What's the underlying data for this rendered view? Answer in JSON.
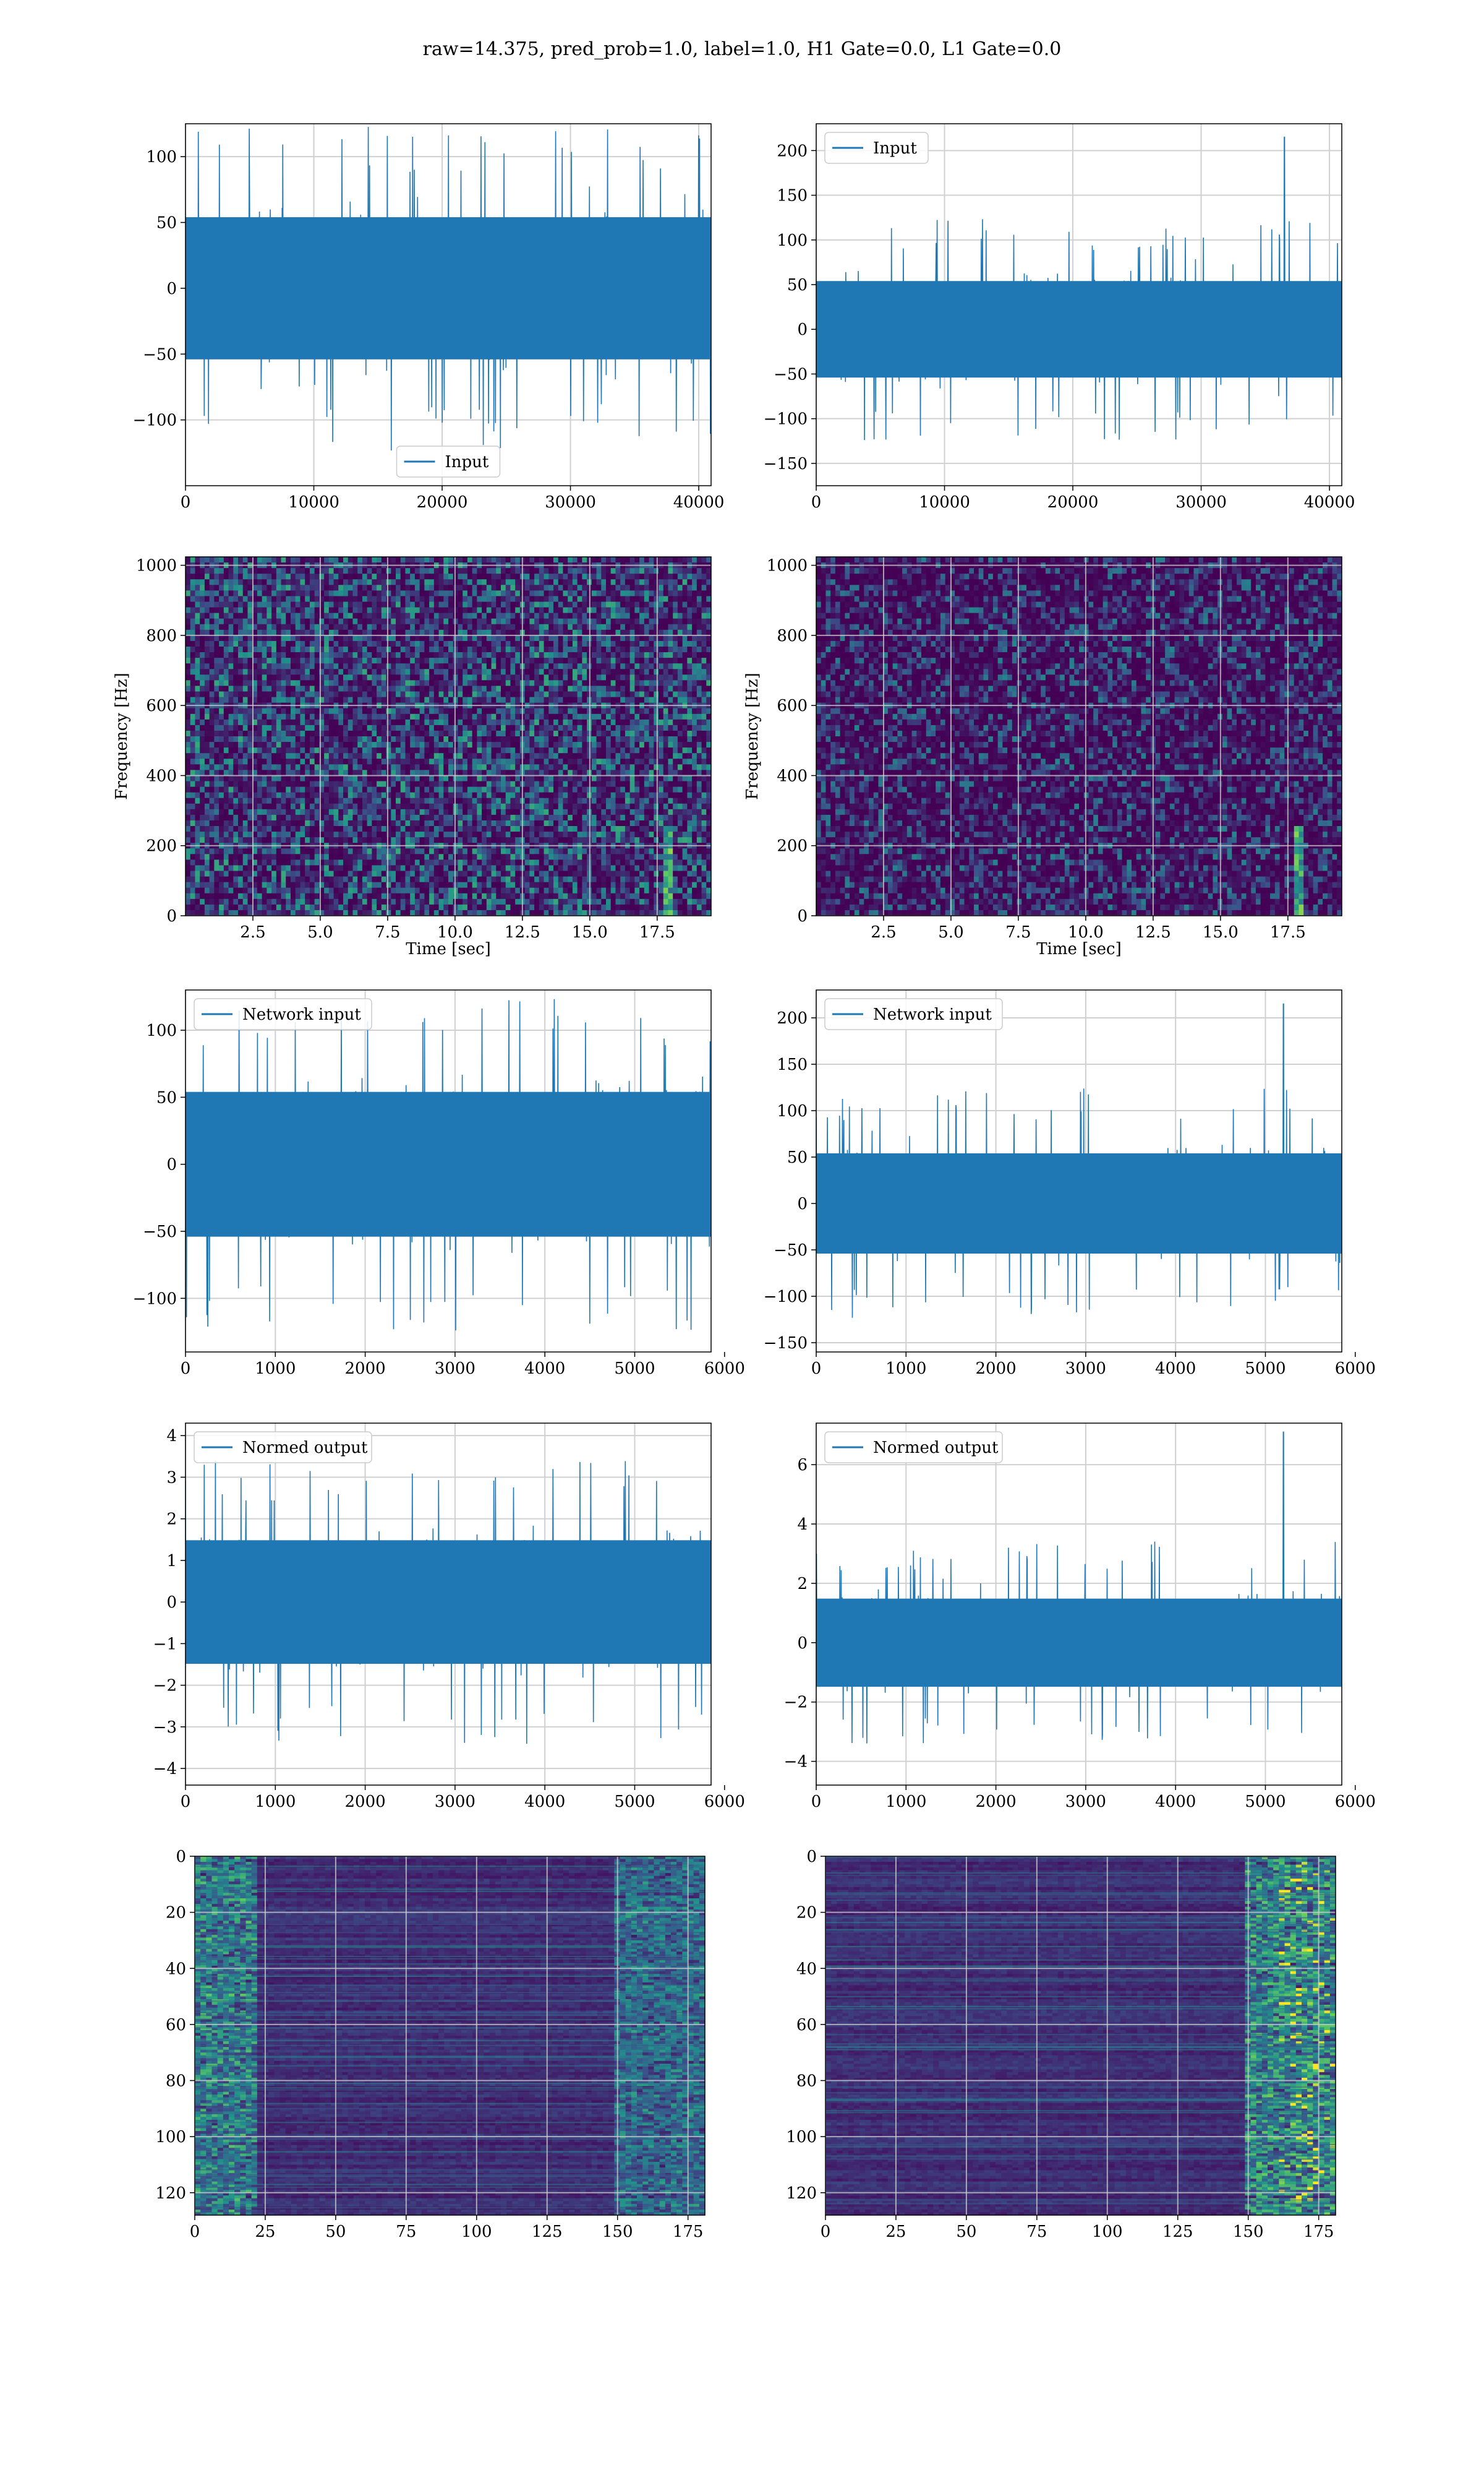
{
  "suptitle": "raw=14.375, pred_prob=1.0, label=1.0, H1 Gate=0.0, L1 Gate=0.0",
  "colors": {
    "line": "#1f77b4",
    "grid": "#d0d0d0",
    "viridis": [
      "#440154",
      "#3b528b",
      "#21918c",
      "#5ec962",
      "#fde725"
    ]
  },
  "chart_data": [
    {
      "id": "h1-input",
      "type": "line",
      "series": [
        {
          "name": "Input",
          "n_samples": 40960
        }
      ],
      "xlim": [
        0,
        40960
      ],
      "ylim": [
        -150,
        125
      ],
      "amplitude": 40,
      "xticks": [
        0,
        10000,
        20000,
        30000,
        40000
      ],
      "yticks": [
        -100,
        -50,
        0,
        50,
        100
      ],
      "legend": "lower center",
      "grid": true,
      "xlabel": "",
      "ylabel": ""
    },
    {
      "id": "l1-input",
      "type": "line",
      "series": [
        {
          "name": "Input",
          "n_samples": 40960
        }
      ],
      "xlim": [
        0,
        40960
      ],
      "ylim": [
        -175,
        230
      ],
      "amplitude": 40,
      "spike_x": 36500,
      "spike_y": 215,
      "xticks": [
        0,
        10000,
        20000,
        30000,
        40000
      ],
      "yticks": [
        -150,
        -100,
        -50,
        0,
        50,
        100,
        150,
        200
      ],
      "legend": "upper left",
      "grid": true,
      "xlabel": "",
      "ylabel": ""
    },
    {
      "id": "h1-spectrogram",
      "type": "heatmap",
      "xlim": [
        0,
        19.5
      ],
      "ylim": [
        0,
        1024
      ],
      "xticks": [
        2.5,
        5.0,
        7.5,
        10.0,
        12.5,
        15.0,
        17.5
      ],
      "yticks": [
        0,
        200,
        400,
        600,
        800,
        1000
      ],
      "xlabel": "Time [sec]",
      "ylabel": "Frequency [Hz]",
      "signal_time": 17.9,
      "grid": true
    },
    {
      "id": "l1-spectrogram",
      "type": "heatmap",
      "xlim": [
        0,
        19.5
      ],
      "ylim": [
        0,
        1024
      ],
      "xticks": [
        2.5,
        5.0,
        7.5,
        10.0,
        12.5,
        15.0,
        17.5
      ],
      "yticks": [
        0,
        200,
        400,
        600,
        800,
        1000
      ],
      "xlabel": "Time [sec]",
      "ylabel": "Frequency [Hz]",
      "signal_time": 17.9,
      "grid": true
    },
    {
      "id": "h1-network-input",
      "type": "line",
      "series": [
        {
          "name": "Network input",
          "n_samples": 5850
        }
      ],
      "xlim": [
        0,
        5850
      ],
      "ylim": [
        -140,
        130
      ],
      "amplitude": 40,
      "xticks": [
        0,
        1000,
        2000,
        3000,
        4000,
        5000,
        6000
      ],
      "yticks": [
        -100,
        -50,
        0,
        50,
        100
      ],
      "legend": "upper left",
      "grid": true,
      "xlabel": "",
      "ylabel": ""
    },
    {
      "id": "l1-network-input",
      "type": "line",
      "series": [
        {
          "name": "Network input",
          "n_samples": 5850
        }
      ],
      "xlim": [
        0,
        5850
      ],
      "ylim": [
        -160,
        230
      ],
      "amplitude": 40,
      "spike_x": 5200,
      "spike_y": 215,
      "xticks": [
        0,
        1000,
        2000,
        3000,
        4000,
        5000,
        6000
      ],
      "yticks": [
        -150,
        -100,
        -50,
        0,
        50,
        100,
        150,
        200
      ],
      "legend": "upper left",
      "grid": true,
      "xlabel": "",
      "ylabel": ""
    },
    {
      "id": "h1-normed-output",
      "type": "line",
      "series": [
        {
          "name": "Normed output",
          "n_samples": 5850
        }
      ],
      "xlim": [
        0,
        5850
      ],
      "ylim": [
        -4.4,
        4.3
      ],
      "amplitude": 1.1,
      "xticks": [
        0,
        1000,
        2000,
        3000,
        4000,
        5000,
        6000
      ],
      "yticks": [
        -4,
        -3,
        -2,
        -1,
        0,
        1,
        2,
        3,
        4
      ],
      "legend": "upper left",
      "grid": true,
      "xlabel": "",
      "ylabel": ""
    },
    {
      "id": "l1-normed-output",
      "type": "line",
      "series": [
        {
          "name": "Normed output",
          "n_samples": 5850
        }
      ],
      "xlim": [
        0,
        5850
      ],
      "ylim": [
        -4.8,
        7.4
      ],
      "amplitude": 1.1,
      "spike_x": 5200,
      "spike_y": 7.1,
      "xticks": [
        0,
        1000,
        2000,
        3000,
        4000,
        5000,
        6000
      ],
      "yticks": [
        -4,
        -2,
        0,
        2,
        4,
        6
      ],
      "legend": "upper left",
      "grid": true,
      "xlabel": "",
      "ylabel": ""
    },
    {
      "id": "h1-feature-map",
      "type": "heatmap",
      "xlim": [
        0,
        181
      ],
      "ylim": [
        128,
        0
      ],
      "xticks": [
        0,
        25,
        50,
        75,
        100,
        125,
        150,
        175
      ],
      "yticks": [
        0,
        20,
        40,
        60,
        80,
        100,
        120
      ],
      "xlabel": "",
      "ylabel": "",
      "grid": true
    },
    {
      "id": "l1-feature-map",
      "type": "heatmap",
      "xlim": [
        0,
        181
      ],
      "ylim": [
        128,
        0
      ],
      "xticks": [
        0,
        25,
        50,
        75,
        100,
        125,
        150,
        175
      ],
      "yticks": [
        0,
        20,
        40,
        60,
        80,
        100,
        120
      ],
      "xlabel": "",
      "ylabel": "",
      "grid": true
    }
  ]
}
